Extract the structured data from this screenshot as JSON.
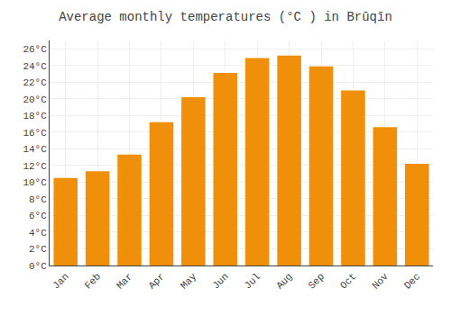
{
  "chart_data": {
    "type": "bar",
    "title": "Average monthly temperatures (°C ) in Brūqīn",
    "categories": [
      "Jan",
      "Feb",
      "Mar",
      "Apr",
      "May",
      "Jun",
      "Jul",
      "Aug",
      "Sep",
      "Oct",
      "Nov",
      "Dec"
    ],
    "values": [
      10.5,
      11.3,
      13.3,
      17.2,
      20.2,
      23.1,
      24.9,
      25.2,
      23.9,
      21.0,
      16.6,
      12.2
    ],
    "color": "#F0900A",
    "ylim": [
      0,
      27
    ],
    "yticks": [
      {
        "value": 0,
        "label": "0°C"
      },
      {
        "value": 2,
        "label": "2°C"
      },
      {
        "value": 4,
        "label": "4°C"
      },
      {
        "value": 6,
        "label": "6°C"
      },
      {
        "value": 8,
        "label": "8°C"
      },
      {
        "value": 10,
        "label": "10°C"
      },
      {
        "value": 12,
        "label": "12°C"
      },
      {
        "value": 14,
        "label": "14°C"
      },
      {
        "value": 16,
        "label": "16°C"
      },
      {
        "value": 18,
        "label": "18°C"
      },
      {
        "value": 20,
        "label": "20°C"
      },
      {
        "value": 22,
        "label": "22°C"
      },
      {
        "value": 24,
        "label": "24°C"
      },
      {
        "value": 26,
        "label": "26°C"
      }
    ],
    "grid": true
  }
}
